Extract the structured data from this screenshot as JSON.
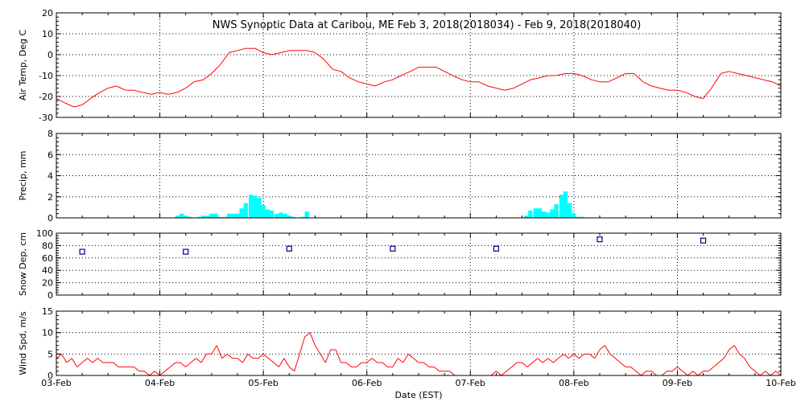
{
  "chart_data": {
    "title": "NWS Synoptic Data at Caribou, ME   Feb  3, 2018(2018034) - Feb  9, 2018(2018040)",
    "xlabel": "Date (EST)",
    "x_ticks": [
      "03-Feb",
      "04-Feb",
      "05-Feb",
      "06-Feb",
      "07-Feb",
      "08-Feb",
      "09-Feb",
      "10-Feb"
    ],
    "x_range_days": [
      0,
      7
    ],
    "panels": [
      {
        "id": "air-temp",
        "type": "line",
        "ylabel": "Air Temp, Deg C",
        "ylim": [
          -30,
          20
        ],
        "yticks": [
          -30,
          -20,
          -10,
          0,
          10,
          20
        ],
        "color": "#ff0000",
        "series": [
          {
            "x": [
              0,
              0.08,
              0.17,
              0.25,
              0.33,
              0.42,
              0.5,
              0.58,
              0.67,
              0.75,
              0.83,
              0.92,
              1.0,
              1.08,
              1.17,
              1.25,
              1.33,
              1.42,
              1.5,
              1.58,
              1.67,
              1.75,
              1.83,
              1.92,
              2.0,
              2.08,
              2.17,
              2.25,
              2.33,
              2.42,
              2.5,
              2.58,
              2.67,
              2.75,
              2.83,
              2.92,
              3.0,
              3.08,
              3.17,
              3.25,
              3.33,
              3.42,
              3.5,
              3.58,
              3.67,
              3.75,
              3.83,
              3.92,
              4.0,
              4.08,
              4.17,
              4.25,
              4.33,
              4.42,
              4.5,
              4.58,
              4.67,
              4.75,
              4.83,
              4.92,
              5.0,
              5.08,
              5.17,
              5.25,
              5.33,
              5.42,
              5.5,
              5.58,
              5.67,
              5.75,
              5.83,
              5.92,
              6.0,
              6.08,
              6.17,
              6.25,
              6.33,
              6.42,
              6.5,
              6.58,
              6.67,
              6.75,
              6.83,
              6.92,
              7.0
            ],
            "y": [
              -21,
              -23,
              -25,
              -24,
              -21,
              -18,
              -16,
              -15,
              -17,
              -17,
              -18,
              -19,
              -18,
              -19,
              -18,
              -16,
              -13,
              -12,
              -9,
              -5,
              1,
              2,
              3,
              3,
              1,
              0,
              1,
              2,
              2,
              2,
              1,
              -2,
              -7,
              -8,
              -11,
              -13,
              -14,
              -15,
              -13,
              -12,
              -10,
              -8,
              -6,
              -6,
              -6,
              -8,
              -10,
              -12,
              -13,
              -13,
              -15,
              -16,
              -17,
              -16,
              -14,
              -12,
              -11,
              -10,
              -10,
              -9,
              -9,
              -10,
              -12,
              -13,
              -13,
              -11,
              -9,
              -9,
              -13,
              -15,
              -16,
              -17,
              -17,
              -18,
              -20,
              -21,
              -16,
              -9,
              -8,
              -9,
              -10,
              -11,
              -12,
              -13,
              -15
            ]
          }
        ]
      },
      {
        "id": "precip",
        "type": "bar",
        "ylabel": "Precip, mm",
        "ylim": [
          0,
          8
        ],
        "yticks": [
          0,
          2,
          4,
          6,
          8
        ],
        "color": "#00ffff",
        "series": [
          {
            "x": [
              1.17,
              1.21,
              1.25,
              1.29,
              1.33,
              1.38,
              1.42,
              1.46,
              1.5,
              1.54,
              1.58,
              1.63,
              1.67,
              1.71,
              1.75,
              1.79,
              1.83,
              1.88,
              1.92,
              1.96,
              2.0,
              2.04,
              2.08,
              2.13,
              2.17,
              2.21,
              2.25,
              2.29,
              2.33,
              2.38,
              2.42,
              2.46,
              2.5,
              4.54,
              4.58,
              4.63,
              4.67,
              4.71,
              4.75,
              4.79,
              4.83,
              4.88,
              4.92,
              4.96,
              5.0,
              5.04,
              5.08
            ],
            "y": [
              0.2,
              0.4,
              0.2,
              0.1,
              0,
              0.1,
              0.2,
              0.2,
              0.4,
              0.4,
              0.1,
              0.1,
              0.4,
              0.4,
              0.4,
              0.9,
              1.4,
              2.2,
              2.1,
              1.9,
              1.2,
              0.8,
              0.7,
              0.4,
              0.5,
              0.4,
              0.2,
              0.1,
              0,
              0.1,
              0.6,
              0,
              0,
              0.2,
              0.7,
              0.9,
              0.9,
              0.6,
              0.5,
              0.8,
              1.3,
              2.2,
              2.5,
              1.4,
              0.4,
              0.1,
              0.1
            ]
          }
        ]
      },
      {
        "id": "snow-depth",
        "type": "scatter",
        "ylabel": "Snow Dep, cm",
        "ylim": [
          0,
          100
        ],
        "yticks": [
          0,
          20,
          40,
          60,
          80,
          100
        ],
        "color": "#000080",
        "series": [
          {
            "x": [
              0.25,
              1.25,
              2.25,
              3.25,
              4.25,
              5.25,
              6.25
            ],
            "y": [
              70,
              70,
              75,
              75,
              75,
              90,
              88
            ]
          }
        ]
      },
      {
        "id": "wind-speed",
        "type": "line",
        "ylabel": "Wind Spd, m/s",
        "ylim": [
          0,
          15
        ],
        "yticks": [
          0,
          5,
          10,
          15
        ],
        "color": "#ff0000",
        "series": [
          {
            "x": [
              0,
              0.05,
              0.1,
              0.15,
              0.2,
              0.25,
              0.3,
              0.35,
              0.4,
              0.45,
              0.5,
              0.55,
              0.6,
              0.65,
              0.7,
              0.75,
              0.8,
              0.85,
              0.9,
              0.95,
              1.0,
              1.05,
              1.1,
              1.15,
              1.2,
              1.25,
              1.3,
              1.35,
              1.4,
              1.45,
              1.5,
              1.55,
              1.6,
              1.65,
              1.7,
              1.75,
              1.8,
              1.85,
              1.9,
              1.95,
              2.0,
              2.05,
              2.1,
              2.15,
              2.2,
              2.25,
              2.3,
              2.35,
              2.4,
              2.45,
              2.5,
              2.55,
              2.6,
              2.65,
              2.7,
              2.75,
              2.8,
              2.85,
              2.9,
              2.95,
              3.0,
              3.05,
              3.1,
              3.15,
              3.2,
              3.25,
              3.3,
              3.35,
              3.4,
              3.45,
              3.5,
              3.55,
              3.6,
              3.65,
              3.7,
              3.75,
              3.8,
              3.85,
              3.9,
              3.95,
              4.0,
              4.05,
              4.1,
              4.15,
              4.2,
              4.25,
              4.3,
              4.35,
              4.4,
              4.45,
              4.5,
              4.55,
              4.6,
              4.65,
              4.7,
              4.75,
              4.8,
              4.85,
              4.9,
              4.95,
              5.0,
              5.05,
              5.1,
              5.15,
              5.2,
              5.25,
              5.3,
              5.35,
              5.4,
              5.45,
              5.5,
              5.55,
              5.6,
              5.65,
              5.7,
              5.75,
              5.8,
              5.85,
              5.9,
              5.95,
              6.0,
              6.05,
              6.1,
              6.15,
              6.2,
              6.25,
              6.3,
              6.35,
              6.4,
              6.45,
              6.5,
              6.55,
              6.6,
              6.65,
              6.7,
              6.75,
              6.8,
              6.85,
              6.9,
              6.95,
              7.0
            ],
            "y": [
              4,
              5,
              3,
              4,
              2,
              3,
              4,
              3,
              4,
              3,
              3,
              3,
              2,
              2,
              2,
              2,
              1,
              1,
              0,
              1,
              0,
              1,
              2,
              3,
              3,
              2,
              3,
              4,
              3,
              5,
              5,
              7,
              4,
              5,
              4,
              4,
              3,
              5,
              4,
              4,
              5,
              4,
              3,
              2,
              4,
              2,
              1,
              5,
              9,
              10,
              7,
              5,
              3,
              6,
              6,
              3,
              3,
              2,
              2,
              3,
              3,
              4,
              3,
              3,
              2,
              2,
              4,
              3,
              5,
              4,
              3,
              3,
              2,
              2,
              1,
              1,
              1,
              0,
              0,
              0,
              0,
              0,
              0,
              0,
              0,
              1,
              0,
              1,
              2,
              3,
              3,
              2,
              3,
              4,
              3,
              4,
              3,
              4,
              5,
              4,
              5,
              4,
              5,
              5,
              4,
              6,
              7,
              5,
              4,
              3,
              2,
              2,
              1,
              0,
              1,
              1,
              0,
              0,
              1,
              1,
              2,
              1,
              0,
              1,
              0,
              1,
              1,
              2,
              3,
              4,
              6,
              7,
              5,
              4,
              2,
              1,
              0,
              1,
              0,
              1,
              0
            ]
          }
        ]
      }
    ]
  }
}
